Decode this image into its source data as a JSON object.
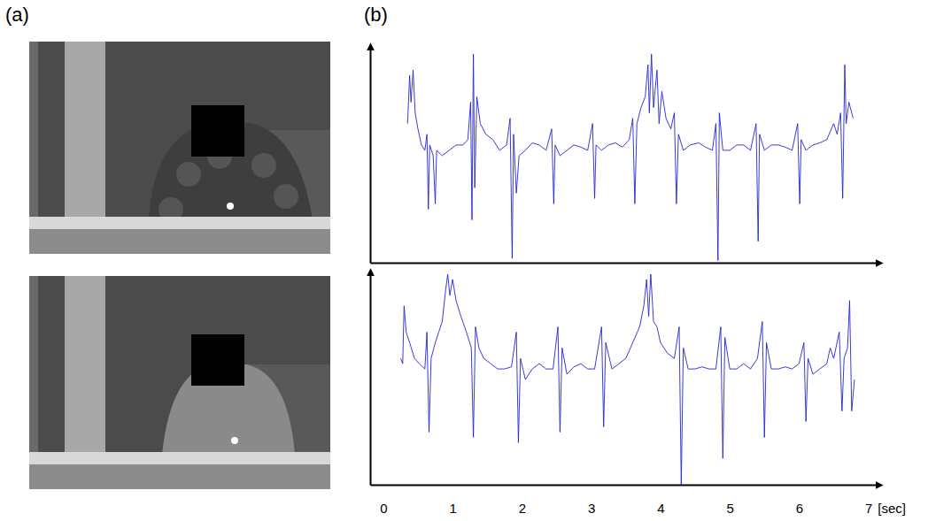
{
  "panel_labels": [
    "(a)",
    "(b)"
  ],
  "chart_data": [
    {
      "type": "line",
      "xlim": [
        -0.19,
        7.12
      ],
      "ylim": [
        -1,
        1
      ],
      "tick_labels": false,
      "x": [
        0.35,
        0.38,
        0.4,
        0.43,
        0.46,
        0.5,
        0.55,
        0.6,
        0.63,
        0.65,
        0.67,
        0.72,
        0.75,
        0.77,
        0.85,
        0.95,
        1.05,
        1.15,
        1.22,
        1.26,
        1.28,
        1.3,
        1.32,
        1.35,
        1.4,
        1.48,
        1.58,
        1.68,
        1.78,
        1.83,
        1.86,
        1.88,
        1.92,
        1.96,
        2.05,
        2.15,
        2.25,
        2.35,
        2.43,
        2.46,
        2.48,
        2.55,
        2.65,
        2.75,
        2.85,
        2.95,
        3.02,
        3.05,
        3.07,
        3.15,
        3.25,
        3.35,
        3.45,
        3.55,
        3.6,
        3.63,
        3.66,
        3.72,
        3.78,
        3.82,
        3.84,
        3.87,
        3.9,
        3.95,
        3.98,
        4.02,
        4.08,
        4.15,
        4.2,
        4.23,
        4.26,
        4.33,
        4.43,
        4.55,
        4.65,
        4.75,
        4.8,
        4.83,
        4.85,
        4.9,
        5.0,
        5.1,
        5.2,
        5.3,
        5.38,
        5.41,
        5.43,
        5.5,
        5.6,
        5.7,
        5.8,
        5.9,
        5.98,
        6.01,
        6.03,
        6.1,
        6.2,
        6.3,
        6.4,
        6.5,
        6.55,
        6.6,
        6.63,
        6.66,
        6.68,
        6.72,
        6.78
      ],
      "series": [
        {
          "color": "#2424d4",
          "values": [
            0.3,
            0.75,
            0.5,
            0.8,
            0.4,
            0.25,
            0.1,
            0.05,
            0.2,
            -0.5,
            0.1,
            0.0,
            -0.45,
            0.05,
            0.0,
            0.05,
            0.1,
            0.1,
            0.15,
            0.5,
            -0.6,
            0.95,
            -0.3,
            0.55,
            0.3,
            0.2,
            0.15,
            0.05,
            0.1,
            0.35,
            -0.96,
            0.2,
            -0.35,
            0.0,
            0.05,
            0.12,
            0.1,
            0.05,
            0.25,
            -0.45,
            0.1,
            0.0,
            0.05,
            0.1,
            0.08,
            0.05,
            0.3,
            -0.4,
            0.1,
            0.05,
            0.1,
            0.12,
            0.08,
            0.15,
            0.35,
            -0.45,
            0.3,
            0.45,
            0.55,
            0.85,
            0.4,
            0.95,
            0.45,
            0.8,
            0.3,
            0.6,
            0.35,
            0.25,
            0.4,
            -0.45,
            0.2,
            0.05,
            0.1,
            0.12,
            0.08,
            0.05,
            0.3,
            -0.98,
            0.4,
            0.05,
            0.05,
            0.1,
            0.1,
            0.05,
            0.3,
            -0.8,
            0.2,
            0.05,
            0.1,
            0.1,
            0.08,
            0.05,
            0.3,
            -0.45,
            0.15,
            0.05,
            0.1,
            0.12,
            0.15,
            0.3,
            0.2,
            0.4,
            -0.4,
            0.85,
            0.3,
            0.5,
            0.35
          ]
        }
      ]
    },
    {
      "type": "line",
      "xlim": [
        -0.19,
        7.12
      ],
      "ylim": [
        -1,
        1
      ],
      "tick_labels": "x",
      "xticks": [
        0,
        1,
        2,
        3,
        4,
        5,
        6,
        7
      ],
      "xlabel": "[sec]",
      "x": [
        0.25,
        0.28,
        0.3,
        0.33,
        0.38,
        0.45,
        0.52,
        0.6,
        0.63,
        0.66,
        0.69,
        0.75,
        0.8,
        0.85,
        0.9,
        0.93,
        0.96,
        1.0,
        1.05,
        1.12,
        1.2,
        1.27,
        1.3,
        1.33,
        1.38,
        1.45,
        1.55,
        1.65,
        1.75,
        1.85,
        1.92,
        1.95,
        1.98,
        2.05,
        2.15,
        2.25,
        2.35,
        2.45,
        2.52,
        2.55,
        2.58,
        2.65,
        2.75,
        2.85,
        2.95,
        3.05,
        3.15,
        3.18,
        3.21,
        3.3,
        3.4,
        3.5,
        3.6,
        3.7,
        3.76,
        3.8,
        3.83,
        3.86,
        3.9,
        3.95,
        4.0,
        4.1,
        4.2,
        4.27,
        4.3,
        4.33,
        4.4,
        4.5,
        4.6,
        4.7,
        4.8,
        4.87,
        4.9,
        4.93,
        5.0,
        5.1,
        5.2,
        5.3,
        5.4,
        5.47,
        5.5,
        5.53,
        5.6,
        5.7,
        5.8,
        5.9,
        6.0,
        6.07,
        6.1,
        6.13,
        6.2,
        6.3,
        6.4,
        6.45,
        6.5,
        6.58,
        6.62,
        6.65,
        6.7,
        6.73,
        6.76,
        6.8
      ],
      "series": [
        {
          "color": "#2424d4",
          "values": [
            0.2,
            0.15,
            0.7,
            0.45,
            0.35,
            0.2,
            0.15,
            0.1,
            0.45,
            -0.5,
            0.2,
            0.35,
            0.45,
            0.55,
            0.85,
            1.0,
            0.8,
            0.95,
            0.75,
            0.6,
            0.45,
            0.3,
            -0.55,
            0.5,
            0.3,
            0.2,
            0.15,
            0.1,
            0.1,
            0.12,
            0.45,
            -0.6,
            0.2,
            0.0,
            0.1,
            0.15,
            0.1,
            0.1,
            0.5,
            -0.5,
            0.3,
            0.05,
            0.12,
            0.15,
            0.1,
            0.1,
            0.5,
            -0.45,
            0.35,
            0.1,
            0.15,
            0.2,
            0.35,
            0.5,
            0.7,
            0.95,
            0.6,
            1.0,
            0.55,
            0.5,
            0.35,
            0.25,
            0.2,
            0.5,
            -1.0,
            0.3,
            0.1,
            0.1,
            0.12,
            0.1,
            0.1,
            0.5,
            -0.75,
            0.4,
            0.1,
            0.1,
            0.15,
            0.1,
            0.2,
            0.55,
            -0.55,
            0.35,
            0.1,
            0.1,
            0.12,
            0.1,
            0.15,
            0.35,
            -0.4,
            0.2,
            0.05,
            0.1,
            0.15,
            0.3,
            0.2,
            0.45,
            -0.3,
            0.2,
            0.3,
            0.75,
            -0.3,
            0.0
          ]
        }
      ]
    }
  ]
}
